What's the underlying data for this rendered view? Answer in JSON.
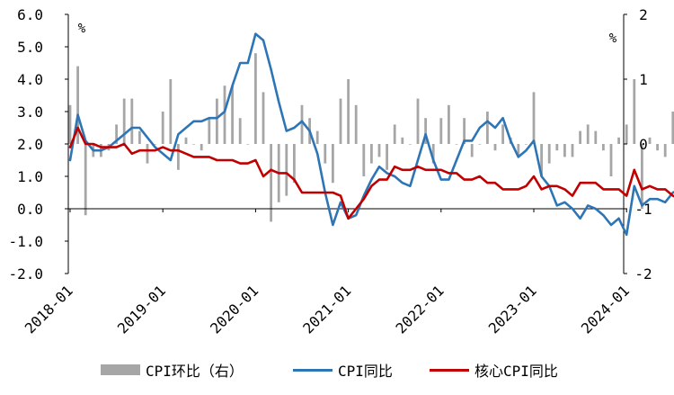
{
  "chart_data": {
    "type": "bar+line",
    "title": "",
    "y_left": {
      "ticks": [
        "6.0",
        "5.0",
        "4.0",
        "3.0",
        "2.0",
        "1.0",
        "0.0",
        "-1.0",
        "-2.0"
      ],
      "ylim": [
        -2,
        6
      ],
      "unit": "%"
    },
    "y_right": {
      "ticks": [
        "2",
        "1",
        "0",
        "-1",
        "-2"
      ],
      "ylim": [
        -2,
        2
      ],
      "unit": "%"
    },
    "x_ticks": [
      "2018-01",
      "2019-01",
      "2020-01",
      "2021-01",
      "2022-01",
      "2023-01",
      "2024-01"
    ],
    "months": [
      "2018-01",
      "2018-02",
      "2018-03",
      "2018-04",
      "2018-05",
      "2018-06",
      "2018-07",
      "2018-08",
      "2018-09",
      "2018-10",
      "2018-11",
      "2018-12",
      "2019-01",
      "2019-02",
      "2019-03",
      "2019-04",
      "2019-05",
      "2019-06",
      "2019-07",
      "2019-08",
      "2019-09",
      "2019-10",
      "2019-11",
      "2019-12",
      "2020-01",
      "2020-02",
      "2020-03",
      "2020-04",
      "2020-05",
      "2020-06",
      "2020-07",
      "2020-08",
      "2020-09",
      "2020-10",
      "2020-11",
      "2020-12",
      "2021-01",
      "2021-02",
      "2021-03",
      "2021-04",
      "2021-05",
      "2021-06",
      "2021-07",
      "2021-08",
      "2021-09",
      "2021-10",
      "2021-11",
      "2021-12",
      "2022-01",
      "2022-02",
      "2022-03",
      "2022-04",
      "2022-05",
      "2022-06",
      "2022-07",
      "2022-08",
      "2022-09",
      "2022-10",
      "2022-11",
      "2022-12",
      "2023-01",
      "2023-02",
      "2023-03",
      "2023-04",
      "2023-05",
      "2023-06",
      "2023-07",
      "2023-08",
      "2023-09",
      "2023-10",
      "2023-11",
      "2023-12",
      "2024-01",
      "2024-02",
      "2024-03",
      "2024-04",
      "2024-05",
      "2024-06",
      "2024-07",
      "2024-08",
      "2024-09"
    ],
    "series": [
      {
        "name": "CPI环比（右）",
        "type": "bar",
        "axis": "right",
        "color": "#a6a6a6",
        "values": [
          0.6,
          1.2,
          -1.1,
          -0.2,
          -0.2,
          -0.1,
          0.3,
          0.7,
          0.7,
          0.2,
          -0.3,
          0.0,
          0.5,
          1.0,
          -0.4,
          0.1,
          0.0,
          -0.1,
          0.4,
          0.7,
          0.9,
          0.9,
          0.4,
          0.0,
          1.4,
          0.8,
          -1.2,
          -0.9,
          -0.8,
          -0.6,
          0.6,
          0.4,
          0.2,
          -0.3,
          -0.6,
          0.7,
          1.0,
          0.6,
          -0.5,
          -0.3,
          -0.2,
          -0.4,
          0.3,
          0.1,
          0.0,
          0.7,
          0.4,
          -0.3,
          0.4,
          0.6,
          0.0,
          0.4,
          -0.2,
          0.0,
          0.5,
          -0.1,
          0.3,
          0.1,
          -0.2,
          0.0,
          0.8,
          -0.5,
          -0.3,
          -0.1,
          -0.2,
          -0.2,
          0.2,
          0.3,
          0.2,
          -0.1,
          -0.5,
          0.1,
          0.3,
          1.0,
          -1.0,
          0.1,
          -0.1,
          -0.2,
          0.5,
          0.4,
          0.0
        ]
      },
      {
        "name": "CPI同比",
        "type": "line",
        "axis": "left",
        "color": "#2e75b6",
        "values": [
          1.5,
          2.9,
          2.1,
          1.8,
          1.8,
          1.9,
          2.1,
          2.3,
          2.5,
          2.5,
          2.2,
          1.9,
          1.7,
          1.5,
          2.3,
          2.5,
          2.7,
          2.7,
          2.8,
          2.8,
          3.0,
          3.8,
          4.5,
          4.5,
          5.4,
          5.2,
          4.3,
          3.3,
          2.4,
          2.5,
          2.7,
          2.4,
          1.7,
          0.5,
          -0.5,
          0.2,
          -0.3,
          -0.2,
          0.4,
          0.9,
          1.3,
          1.1,
          1.0,
          0.8,
          0.7,
          1.5,
          2.3,
          1.5,
          0.9,
          0.9,
          1.5,
          2.1,
          2.1,
          2.5,
          2.7,
          2.5,
          2.8,
          2.1,
          1.6,
          1.8,
          2.1,
          1.0,
          0.7,
          0.1,
          0.2,
          0.0,
          -0.3,
          0.1,
          0.0,
          -0.2,
          -0.5,
          -0.3,
          -0.8,
          0.7,
          0.1,
          0.3,
          0.3,
          0.2,
          0.5,
          0.6,
          0.4
        ]
      },
      {
        "name": "核心CPI同比",
        "type": "line",
        "axis": "left",
        "color": "#c00000",
        "values": [
          1.9,
          2.5,
          2.0,
          2.0,
          1.9,
          1.9,
          1.9,
          2.0,
          1.7,
          1.8,
          1.8,
          1.8,
          1.9,
          1.8,
          1.8,
          1.7,
          1.6,
          1.6,
          1.6,
          1.5,
          1.5,
          1.5,
          1.4,
          1.4,
          1.5,
          1.0,
          1.2,
          1.1,
          1.1,
          0.9,
          0.5,
          0.5,
          0.5,
          0.5,
          0.5,
          0.4,
          -0.3,
          0.0,
          0.3,
          0.7,
          0.9,
          0.9,
          1.3,
          1.2,
          1.2,
          1.3,
          1.2,
          1.2,
          1.2,
          1.1,
          1.1,
          0.9,
          0.9,
          1.0,
          0.8,
          0.8,
          0.6,
          0.6,
          0.6,
          0.7,
          1.0,
          0.6,
          0.7,
          0.7,
          0.6,
          0.4,
          0.8,
          0.8,
          0.8,
          0.6,
          0.6,
          0.6,
          0.4,
          1.2,
          0.6,
          0.7,
          0.6,
          0.6,
          0.4,
          0.3,
          0.1
        ]
      }
    ],
    "legend_position": "bottom",
    "grid": false
  }
}
